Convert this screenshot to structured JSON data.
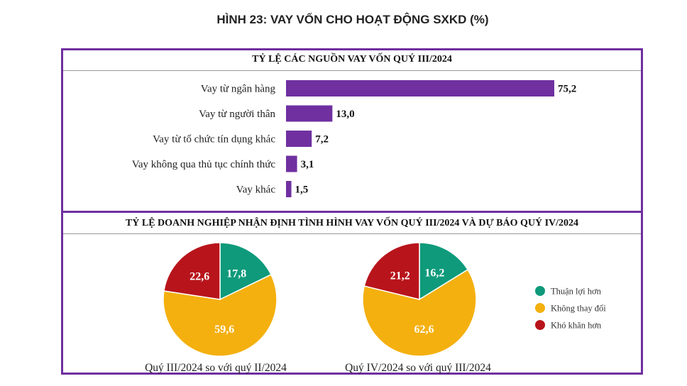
{
  "title": "HÌNH 23: VAY VỐN CHO HOẠT ĐỘNG SXKD (%)",
  "colors": {
    "frame": "#6f2fa0",
    "bar": "#7030a0",
    "green": "#0e9a7b",
    "yellow": "#f4b00f",
    "red": "#b8141b"
  },
  "chart_data": [
    {
      "type": "bar",
      "orientation": "horizontal",
      "title": "TỶ LỆ CÁC NGUỒN VAY VỐN QUÝ III/2024",
      "categories": [
        "Vay từ ngân hàng",
        "Vay từ người thân",
        "Vay từ tổ chức tín dụng khác",
        "Vay không qua thủ tục chính thức",
        "Vay khác"
      ],
      "values": [
        75.2,
        13.0,
        7.2,
        3.1,
        1.5
      ],
      "value_labels": [
        "75,2",
        "13,0",
        "7,2",
        "3,1",
        "1,5"
      ],
      "xlim": [
        0,
        100
      ]
    },
    {
      "type": "pie",
      "title": "TỶ LỆ DOANH NGHIỆP NHẬN ĐỊNH TÌNH HÌNH VAY VỐN QUÝ III/2024 VÀ DỰ BÁO QUÝ IV/2024",
      "legend": {
        "placement": "right",
        "entries": [
          "Thuận lợi hơn",
          "Không thay đổi",
          "Khó khăn hơn"
        ]
      },
      "pies": [
        {
          "caption": "Quý III/2024 so với quý II/2024",
          "values": [
            17.8,
            59.6,
            22.6
          ],
          "value_labels": [
            "17,8",
            "59,6",
            "22,6"
          ]
        },
        {
          "caption": "Quý IV/2024 so với quý III/2024",
          "values": [
            16.2,
            62.6,
            21.2
          ],
          "value_labels": [
            "16,2",
            "62,6",
            "21,2"
          ]
        }
      ]
    }
  ]
}
